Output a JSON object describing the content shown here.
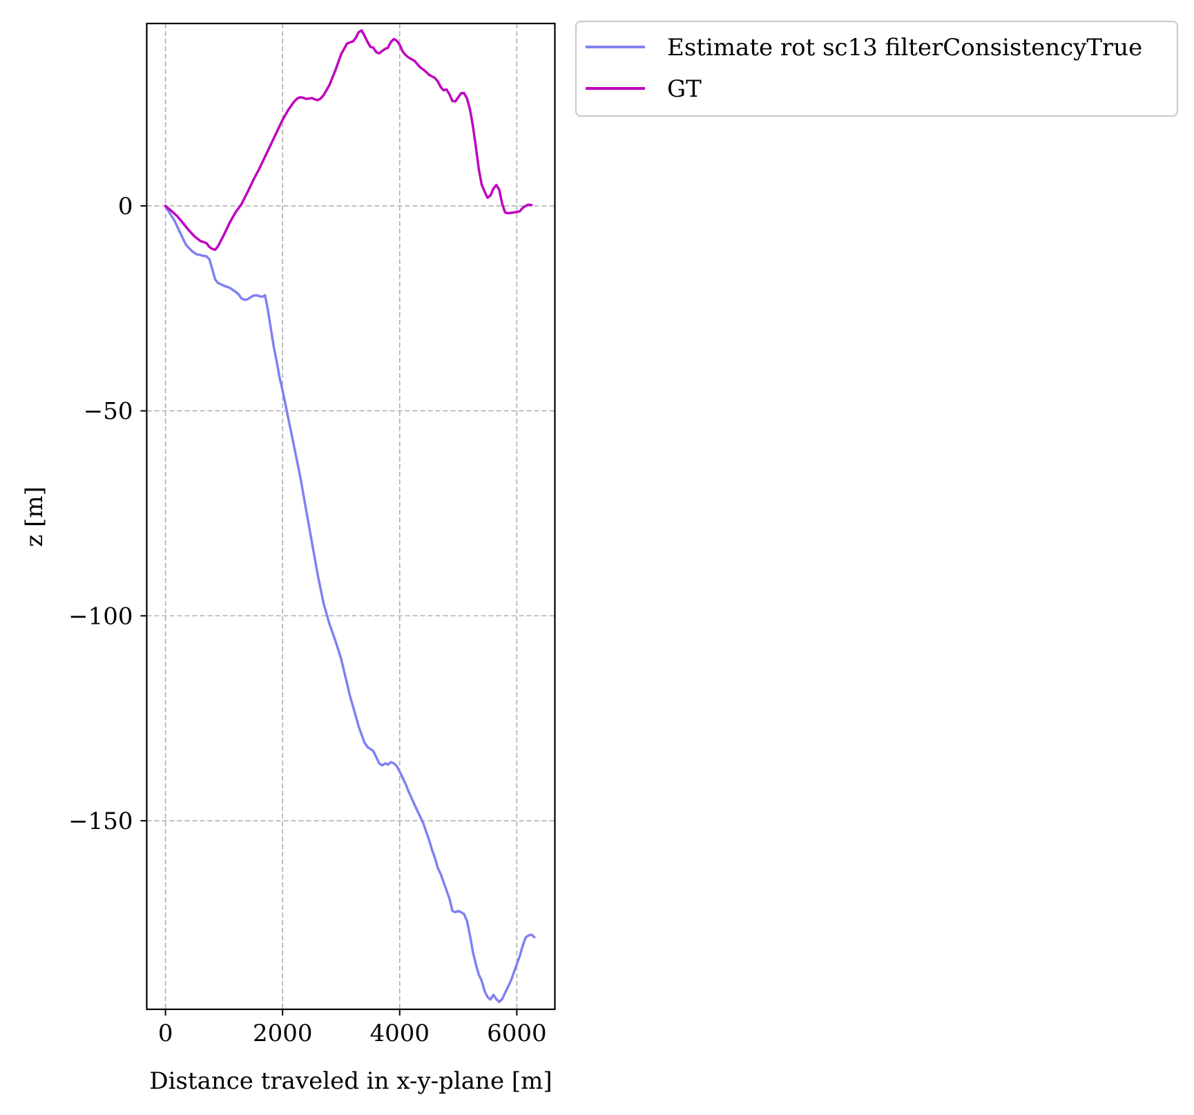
{
  "chart_data": {
    "type": "line",
    "title": "",
    "xlabel": "Distance traveled in x-y-plane [m]",
    "ylabel": "z [m]",
    "xlim": [
      -320,
      6650
    ],
    "ylim": [
      -196,
      44.5
    ],
    "xticks": [
      0,
      2000,
      4000,
      6000
    ],
    "yticks": [
      0,
      -50,
      -100,
      -150
    ],
    "xtick_labels": [
      "0",
      "2000",
      "4000",
      "6000"
    ],
    "ytick_labels": [
      "0",
      "−50",
      "−100",
      "−150"
    ],
    "grid": true,
    "legend_position": "outside upper right",
    "series": [
      {
        "name": "Estimate rot sc13 filterConsistencyTrue",
        "color": "#8080f2",
        "x": [
          0,
          60,
          150,
          250,
          350,
          450,
          530,
          600,
          650,
          700,
          750,
          800,
          850,
          900,
          1000,
          1100,
          1200,
          1250,
          1300,
          1350,
          1400,
          1450,
          1500,
          1550,
          1600,
          1650,
          1700,
          1750,
          1800,
          1850,
          1900,
          1950,
          2000,
          2100,
          2200,
          2300,
          2400,
          2500,
          2600,
          2700,
          2800,
          2900,
          3000,
          3100,
          3150,
          3200,
          3250,
          3300,
          3350,
          3400,
          3450,
          3500,
          3550,
          3600,
          3650,
          3700,
          3750,
          3800,
          3850,
          3900,
          3950,
          4000,
          4050,
          4100,
          4150,
          4200,
          4250,
          4300,
          4350,
          4400,
          4450,
          4500,
          4550,
          4600,
          4650,
          4700,
          4750,
          4800,
          4850,
          4900,
          4950,
          5000,
          5050,
          5100,
          5150,
          5200,
          5250,
          5300,
          5350,
          5400,
          5450,
          5500,
          5550,
          5600,
          5650,
          5700,
          5750,
          5800,
          5850,
          5900,
          5950,
          6000,
          6050,
          6100,
          6150,
          6200,
          6250,
          6300
        ],
        "y": [
          0,
          -1.5,
          -3.5,
          -6.5,
          -9.5,
          -11,
          -11.8,
          -12,
          -12.2,
          -12.3,
          -13,
          -15.5,
          -18,
          -18.8,
          -19.5,
          -20,
          -21,
          -21.6,
          -22.6,
          -22.9,
          -22.8,
          -22.3,
          -21.9,
          -21.8,
          -22,
          -22.2,
          -21.8,
          -25.5,
          -30,
          -34.5,
          -38,
          -42,
          -45,
          -52,
          -59,
          -66,
          -74,
          -82,
          -90,
          -97,
          -102,
          -106,
          -110.5,
          -116.5,
          -119.5,
          -122,
          -124.5,
          -127,
          -129,
          -131,
          -132,
          -132.5,
          -133,
          -134.5,
          -136,
          -136.5,
          -136,
          -136.3,
          -135.7,
          -136,
          -136.7,
          -138,
          -139.5,
          -141,
          -142.8,
          -144.4,
          -146,
          -147.5,
          -149,
          -150.5,
          -152.6,
          -154.6,
          -157,
          -159,
          -161.5,
          -163,
          -165,
          -167,
          -169,
          -172,
          -172.3,
          -172,
          -172.3,
          -172.8,
          -174.5,
          -178,
          -182,
          -185,
          -187.5,
          -189,
          -191.5,
          -193,
          -193.6,
          -192.5,
          -193.5,
          -194.2,
          -193.5,
          -192,
          -190.5,
          -189,
          -187,
          -185,
          -183,
          -180.5,
          -178.5,
          -178,
          -177.8,
          -178.4
        ],
        "line_width": 3.5
      },
      {
        "name": "GT",
        "color": "#bf00bf",
        "x": [
          0,
          100,
          200,
          300,
          400,
          500,
          600,
          650,
          700,
          750,
          800,
          850,
          900,
          1000,
          1100,
          1200,
          1300,
          1400,
          1500,
          1600,
          1700,
          1800,
          1900,
          2000,
          2100,
          2200,
          2250,
          2300,
          2350,
          2400,
          2450,
          2500,
          2550,
          2600,
          2650,
          2700,
          2800,
          2900,
          3000,
          3100,
          3150,
          3200,
          3250,
          3300,
          3350,
          3400,
          3450,
          3500,
          3550,
          3600,
          3650,
          3700,
          3750,
          3800,
          3850,
          3900,
          3950,
          4000,
          4050,
          4100,
          4150,
          4200,
          4250,
          4300,
          4350,
          4400,
          4450,
          4500,
          4550,
          4600,
          4650,
          4700,
          4750,
          4800,
          4850,
          4900,
          4950,
          5000,
          5050,
          5100,
          5150,
          5200,
          5250,
          5300,
          5350,
          5400,
          5450,
          5500,
          5550,
          5600,
          5650,
          5700,
          5750,
          5800,
          5850,
          5900,
          5950,
          6000,
          6050,
          6100,
          6150,
          6200,
          6250
        ],
        "y": [
          0,
          -1.2,
          -2.5,
          -4.2,
          -6,
          -7.5,
          -8.6,
          -8.8,
          -9.1,
          -10,
          -10.5,
          -10.7,
          -9.8,
          -7,
          -4,
          -1.5,
          0.5,
          3.3,
          6.3,
          9,
          12,
          15,
          18,
          21,
          23.5,
          25.5,
          26.2,
          26.5,
          26.4,
          26.1,
          26.2,
          26.3,
          26,
          25.8,
          26.2,
          27,
          29.5,
          33,
          37,
          39.6,
          39.9,
          40.1,
          41,
          42.4,
          42.8,
          41.5,
          40,
          38.8,
          38.6,
          37.5,
          37.2,
          37.8,
          38.3,
          38.6,
          40,
          40.7,
          40.3,
          39.3,
          37.7,
          36.8,
          36.2,
          35.8,
          35.4,
          34.6,
          33.8,
          33.3,
          32.7,
          32,
          31.6,
          31.2,
          30.4,
          29,
          28.2,
          28.4,
          27.2,
          25.6,
          25.5,
          26.5,
          27.5,
          27.5,
          26.2,
          23.5,
          19.5,
          14.5,
          9,
          5.2,
          3.5,
          2,
          2.5,
          4.2,
          5.1,
          4,
          0.5,
          -1.6,
          -1.8,
          -1.7,
          -1.6,
          -1.5,
          -1.3,
          -0.5,
          0,
          0.3,
          0.2
        ],
        "line_width": 3.5
      }
    ]
  }
}
